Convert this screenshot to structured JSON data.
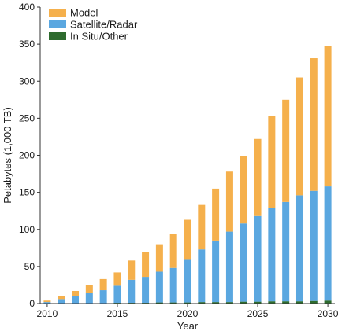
{
  "chart_data": {
    "type": "bar",
    "stacked": true,
    "title": "",
    "xlabel": "Year",
    "ylabel": "Petabytes (1,000 TB)",
    "ylim": [
      0,
      400
    ],
    "yticks": [
      "0",
      "50",
      "100",
      "150",
      "200",
      "250",
      "300",
      "350",
      "400"
    ],
    "xticks": [
      "2010",
      "2015",
      "2020",
      "2025",
      "2030"
    ],
    "x": [
      2010,
      2011,
      2012,
      2013,
      2014,
      2015,
      2016,
      2017,
      2018,
      2019,
      2020,
      2021,
      2022,
      2023,
      2024,
      2025,
      2026,
      2027,
      2028,
      2029,
      2030
    ],
    "series": [
      {
        "name": "In Situ/Other",
        "color": "#2e6b2e",
        "values": [
          0.5,
          0.5,
          0.5,
          0.5,
          0.5,
          1,
          1,
          1,
          1.5,
          1.5,
          1.5,
          2,
          2,
          2,
          2.5,
          2.5,
          3,
          3,
          3,
          3.5,
          4
        ]
      },
      {
        "name": "Satellite/Radar",
        "color": "#5aa7e0",
        "values": [
          1.5,
          5.5,
          9.5,
          13.5,
          17.5,
          23,
          31,
          35,
          41.5,
          46.5,
          58.5,
          71,
          83,
          95,
          105.5,
          115.5,
          126,
          134,
          143,
          148.5,
          154
        ]
      },
      {
        "name": "Model",
        "color": "#f5b04c",
        "values": [
          2,
          4,
          7,
          11,
          15,
          18,
          26,
          33,
          37,
          46,
          53,
          60,
          70,
          81,
          91,
          104,
          124,
          138,
          159,
          179,
          189
        ]
      }
    ],
    "legend": {
      "position": "top-left",
      "order": [
        "Model",
        "Satellite/Radar",
        "In Situ/Other"
      ]
    },
    "grid": false
  }
}
